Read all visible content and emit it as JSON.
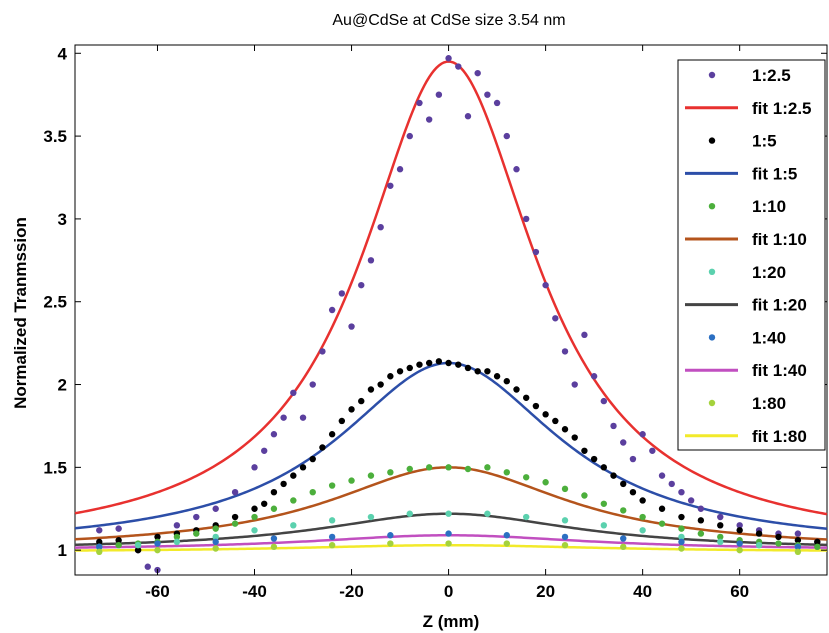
{
  "chart_data": {
    "type": "scatter",
    "title": "Au@CdSe at CdSe size 3.54 nm",
    "xlabel": "Z (mm)",
    "ylabel": "Normalized Tranmssion",
    "xlim": [
      -77,
      78
    ],
    "ylim": [
      0.85,
      4.05
    ],
    "xticks": [
      -60,
      -40,
      -20,
      0,
      20,
      40,
      60
    ],
    "xtick_labels": [
      "-60",
      "-40",
      "-20",
      "0",
      "20",
      "40",
      "60"
    ],
    "yticks": [
      1,
      1.5,
      2,
      2.5,
      3,
      3.5,
      4
    ],
    "ytick_labels": [
      "1",
      "1.5",
      "2",
      "2.5",
      "3",
      "3.5",
      "4"
    ],
    "legend_position": "top-right",
    "grid": false,
    "series": [
      {
        "name": "1:2.5",
        "kind": "markers",
        "color": "#5b3f9e",
        "points": [
          [
            -72,
            1.12
          ],
          [
            -68,
            1.13
          ],
          [
            -64,
            1.0
          ],
          [
            -62,
            0.9
          ],
          [
            -60,
            0.88
          ],
          [
            -56,
            1.15
          ],
          [
            -52,
            1.2
          ],
          [
            -48,
            1.25
          ],
          [
            -44,
            1.35
          ],
          [
            -40,
            1.5
          ],
          [
            -38,
            1.6
          ],
          [
            -36,
            1.7
          ],
          [
            -34,
            1.8
          ],
          [
            -32,
            1.95
          ],
          [
            -30,
            1.8
          ],
          [
            -28,
            2.0
          ],
          [
            -26,
            2.2
          ],
          [
            -24,
            2.45
          ],
          [
            -22,
            2.55
          ],
          [
            -20,
            2.35
          ],
          [
            -18,
            2.6
          ],
          [
            -16,
            2.75
          ],
          [
            -14,
            2.95
          ],
          [
            -12,
            3.2
          ],
          [
            -10,
            3.3
          ],
          [
            -8,
            3.5
          ],
          [
            -6,
            3.7
          ],
          [
            -4,
            3.6
          ],
          [
            -2,
            3.75
          ],
          [
            0,
            3.97
          ],
          [
            2,
            3.92
          ],
          [
            4,
            3.62
          ],
          [
            6,
            3.88
          ],
          [
            8,
            3.75
          ],
          [
            10,
            3.7
          ],
          [
            12,
            3.5
          ],
          [
            14,
            3.3
          ],
          [
            16,
            3.0
          ],
          [
            18,
            2.8
          ],
          [
            20,
            2.6
          ],
          [
            22,
            2.4
          ],
          [
            24,
            2.2
          ],
          [
            26,
            2.0
          ],
          [
            28,
            2.3
          ],
          [
            30,
            2.05
          ],
          [
            32,
            1.9
          ],
          [
            34,
            1.75
          ],
          [
            36,
            1.65
          ],
          [
            38,
            1.55
          ],
          [
            40,
            1.7
          ],
          [
            42,
            1.6
          ],
          [
            44,
            1.45
          ],
          [
            46,
            1.4
          ],
          [
            48,
            1.35
          ],
          [
            50,
            1.3
          ],
          [
            52,
            1.25
          ],
          [
            56,
            1.2
          ],
          [
            60,
            1.15
          ],
          [
            64,
            1.12
          ],
          [
            68,
            1.1
          ],
          [
            72,
            1.1
          ],
          [
            76,
            1.05
          ]
        ]
      },
      {
        "name": "fit 1:2.5",
        "kind": "line",
        "color": "#e8312f",
        "fit": {
          "base": 1.0,
          "amp": 2.95,
          "center": 0,
          "width": 22
        }
      },
      {
        "name": "1:5",
        "kind": "markers",
        "color": "#000000",
        "points": [
          [
            -72,
            1.05
          ],
          [
            -68,
            1.06
          ],
          [
            -64,
            1.0
          ],
          [
            -60,
            1.08
          ],
          [
            -56,
            1.1
          ],
          [
            -52,
            1.12
          ],
          [
            -48,
            1.15
          ],
          [
            -44,
            1.2
          ],
          [
            -40,
            1.25
          ],
          [
            -38,
            1.28
          ],
          [
            -36,
            1.35
          ],
          [
            -34,
            1.4
          ],
          [
            -32,
            1.45
          ],
          [
            -30,
            1.5
          ],
          [
            -28,
            1.55
          ],
          [
            -26,
            1.62
          ],
          [
            -24,
            1.7
          ],
          [
            -22,
            1.78
          ],
          [
            -20,
            1.85
          ],
          [
            -18,
            1.9
          ],
          [
            -16,
            1.97
          ],
          [
            -14,
            2.0
          ],
          [
            -12,
            2.05
          ],
          [
            -10,
            2.08
          ],
          [
            -8,
            2.1
          ],
          [
            -6,
            2.12
          ],
          [
            -4,
            2.13
          ],
          [
            -2,
            2.14
          ],
          [
            0,
            2.13
          ],
          [
            2,
            2.12
          ],
          [
            4,
            2.1
          ],
          [
            6,
            2.08
          ],
          [
            8,
            2.08
          ],
          [
            10,
            2.05
          ],
          [
            12,
            2.02
          ],
          [
            14,
            1.97
          ],
          [
            16,
            1.92
          ],
          [
            18,
            1.87
          ],
          [
            20,
            1.82
          ],
          [
            22,
            1.78
          ],
          [
            24,
            1.73
          ],
          [
            26,
            1.68
          ],
          [
            28,
            1.6
          ],
          [
            30,
            1.55
          ],
          [
            32,
            1.5
          ],
          [
            34,
            1.45
          ],
          [
            36,
            1.4
          ],
          [
            38,
            1.35
          ],
          [
            40,
            1.3
          ],
          [
            44,
            1.25
          ],
          [
            48,
            1.2
          ],
          [
            52,
            1.18
          ],
          [
            56,
            1.15
          ],
          [
            60,
            1.12
          ],
          [
            64,
            1.1
          ],
          [
            68,
            1.08
          ],
          [
            72,
            1.06
          ],
          [
            76,
            1.05
          ]
        ]
      },
      {
        "name": "fit 1:5",
        "kind": "line",
        "color": "#2c4ea8",
        "fit": {
          "base": 1.0,
          "amp": 1.13,
          "center": 0,
          "width": 28
        }
      },
      {
        "name": "1:10",
        "kind": "markers",
        "color": "#4caf3c",
        "points": [
          [
            -72,
            1.02
          ],
          [
            -68,
            1.03
          ],
          [
            -64,
            1.04
          ],
          [
            -60,
            1.05
          ],
          [
            -56,
            1.08
          ],
          [
            -52,
            1.1
          ],
          [
            -48,
            1.13
          ],
          [
            -44,
            1.16
          ],
          [
            -40,
            1.2
          ],
          [
            -36,
            1.25
          ],
          [
            -32,
            1.3
          ],
          [
            -28,
            1.35
          ],
          [
            -24,
            1.39
          ],
          [
            -20,
            1.42
          ],
          [
            -16,
            1.45
          ],
          [
            -12,
            1.47
          ],
          [
            -8,
            1.49
          ],
          [
            -4,
            1.5
          ],
          [
            0,
            1.5
          ],
          [
            4,
            1.49
          ],
          [
            8,
            1.5
          ],
          [
            12,
            1.47
          ],
          [
            16,
            1.44
          ],
          [
            20,
            1.41
          ],
          [
            24,
            1.37
          ],
          [
            28,
            1.33
          ],
          [
            32,
            1.28
          ],
          [
            36,
            1.24
          ],
          [
            40,
            1.2
          ],
          [
            44,
            1.16
          ],
          [
            48,
            1.13
          ],
          [
            52,
            1.1
          ],
          [
            56,
            1.08
          ],
          [
            60,
            1.06
          ],
          [
            64,
            1.05
          ],
          [
            68,
            1.04
          ],
          [
            72,
            1.03
          ],
          [
            76,
            1.02
          ]
        ]
      },
      {
        "name": "fit 1:10",
        "kind": "line",
        "color": "#b4541c",
        "fit": {
          "base": 1.0,
          "amp": 0.5,
          "center": 0,
          "width": 30
        }
      },
      {
        "name": "1:20",
        "kind": "markers",
        "color": "#5bd1ae",
        "points": [
          [
            -72,
            1.02
          ],
          [
            -64,
            1.03
          ],
          [
            -56,
            1.05
          ],
          [
            -48,
            1.08
          ],
          [
            -40,
            1.12
          ],
          [
            -32,
            1.15
          ],
          [
            -24,
            1.18
          ],
          [
            -16,
            1.2
          ],
          [
            -8,
            1.22
          ],
          [
            0,
            1.22
          ],
          [
            8,
            1.22
          ],
          [
            16,
            1.2
          ],
          [
            24,
            1.18
          ],
          [
            32,
            1.15
          ],
          [
            40,
            1.12
          ],
          [
            48,
            1.08
          ],
          [
            56,
            1.05
          ],
          [
            64,
            1.03
          ],
          [
            72,
            1.02
          ]
        ]
      },
      {
        "name": "fit 1:20",
        "kind": "line",
        "color": "#444444",
        "fit": {
          "base": 1.0,
          "amp": 0.22,
          "center": 0,
          "width": 32
        }
      },
      {
        "name": "1:40",
        "kind": "markers",
        "color": "#2b6fc2",
        "points": [
          [
            -72,
            1.02
          ],
          [
            -60,
            1.04
          ],
          [
            -48,
            1.05
          ],
          [
            -36,
            1.07
          ],
          [
            -24,
            1.08
          ],
          [
            -12,
            1.09
          ],
          [
            0,
            1.1
          ],
          [
            12,
            1.09
          ],
          [
            24,
            1.08
          ],
          [
            36,
            1.07
          ],
          [
            48,
            1.05
          ],
          [
            60,
            1.04
          ],
          [
            72,
            1.02
          ]
        ]
      },
      {
        "name": "fit 1:40",
        "kind": "line",
        "color": "#c14fc0",
        "fit": {
          "base": 1.0,
          "amp": 0.09,
          "center": 0,
          "width": 35
        }
      },
      {
        "name": "1:80",
        "kind": "markers",
        "color": "#a4d23c",
        "points": [
          [
            -72,
            0.99
          ],
          [
            -60,
            1.0
          ],
          [
            -48,
            1.01
          ],
          [
            -36,
            1.02
          ],
          [
            -24,
            1.03
          ],
          [
            -12,
            1.04
          ],
          [
            0,
            1.04
          ],
          [
            12,
            1.04
          ],
          [
            24,
            1.03
          ],
          [
            36,
            1.02
          ],
          [
            48,
            1.01
          ],
          [
            60,
            1.0
          ],
          [
            72,
            0.99
          ]
        ]
      },
      {
        "name": "fit 1:80",
        "kind": "line",
        "color": "#f2ea2a",
        "fit": {
          "base": 0.99,
          "amp": 0.04,
          "center": 0,
          "width": 38
        }
      }
    ]
  }
}
